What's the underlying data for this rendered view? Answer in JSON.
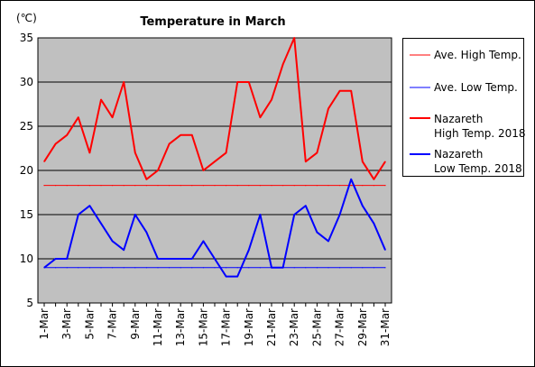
{
  "chart_data": {
    "type": "line",
    "title": "Temperature in March",
    "unit_label": "(℃)",
    "ylim": [
      5,
      35
    ],
    "y_ticks": [
      "5",
      "10",
      "15",
      "20",
      "25",
      "30",
      "35"
    ],
    "x_tick_labels": [
      "1-Mar",
      "3-Mar",
      "5-Mar",
      "7-Mar",
      "9-Mar",
      "11-Mar",
      "13-Mar",
      "15-Mar",
      "17-Mar",
      "19-Mar",
      "21-Mar",
      "23-Mar",
      "25-Mar",
      "27-Mar",
      "29-Mar",
      "31-Mar"
    ],
    "days": [
      1,
      2,
      3,
      4,
      5,
      6,
      7,
      8,
      9,
      10,
      11,
      12,
      13,
      14,
      15,
      16,
      17,
      18,
      19,
      20,
      21,
      22,
      23,
      24,
      25,
      26,
      27,
      28,
      29,
      30,
      31
    ],
    "grid": true,
    "plot_background": "#c0c0c0",
    "legend_position": "right",
    "series": [
      {
        "name": "Ave. High Temp.",
        "color": "#ff0000",
        "width": "thin",
        "values": [
          18.3,
          18.3,
          18.3,
          18.3,
          18.3,
          18.3,
          18.3,
          18.3,
          18.3,
          18.3,
          18.3,
          18.3,
          18.3,
          18.3,
          18.3,
          18.3,
          18.3,
          18.3,
          18.3,
          18.3,
          18.3,
          18.3,
          18.3,
          18.3,
          18.3,
          18.3,
          18.3,
          18.3,
          18.3,
          18.3,
          18.3
        ]
      },
      {
        "name": "Ave. Low Temp.",
        "color": "#0000ff",
        "width": "thin",
        "values": [
          9,
          9,
          9,
          9,
          9,
          9,
          9,
          9,
          9,
          9,
          9,
          9,
          9,
          9,
          9,
          9,
          9,
          9,
          9,
          9,
          9,
          9,
          9,
          9,
          9,
          9,
          9,
          9,
          9,
          9,
          9
        ]
      },
      {
        "name": "Nazareth High Temp. 2018",
        "legend_lines": [
          "Nazareth",
          "High Temp. 2018"
        ],
        "color": "#ff0000",
        "width": "thick",
        "values": [
          21,
          23,
          24,
          26,
          22,
          28,
          26,
          30,
          22,
          19,
          20,
          23,
          24,
          24,
          20,
          21,
          22,
          30,
          30,
          26,
          28,
          32,
          35,
          21,
          22,
          27,
          29,
          29,
          21,
          19,
          21
        ]
      },
      {
        "name": "Nazareth Low Temp. 2018",
        "legend_lines": [
          "Nazareth",
          "Low Temp. 2018"
        ],
        "color": "#0000ff",
        "width": "thick",
        "values": [
          9,
          10,
          10,
          15,
          16,
          14,
          12,
          11,
          15,
          13,
          10,
          10,
          10,
          10,
          12,
          10,
          8,
          8,
          11,
          15,
          9,
          9,
          15,
          16,
          13,
          12,
          15,
          19,
          16,
          14,
          11
        ]
      }
    ]
  }
}
